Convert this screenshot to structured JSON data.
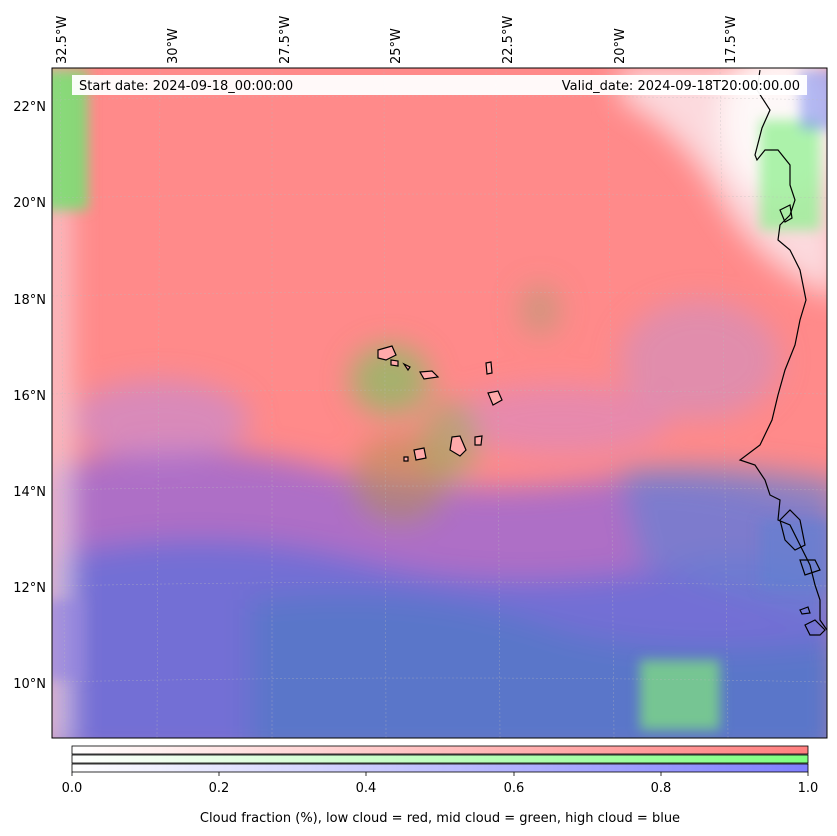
{
  "map": {
    "start_date_text": "Start date: 2024-09-18_00:00:00",
    "valid_date_text": "Valid_date: 2024-09-18T20:00:00.00",
    "lon_ticks": [
      {
        "value": -32.5,
        "label": "32.5°W"
      },
      {
        "value": -30.0,
        "label": "30°W"
      },
      {
        "value": -27.5,
        "label": "27.5°W"
      },
      {
        "value": -25.0,
        "label": "25°W"
      },
      {
        "value": -22.5,
        "label": "22.5°W"
      },
      {
        "value": -20.0,
        "label": "20°W"
      },
      {
        "value": -17.5,
        "label": "17.5°W"
      }
    ],
    "lat_ticks": [
      {
        "value": 22,
        "label": "22°N"
      },
      {
        "value": 20,
        "label": "20°N"
      },
      {
        "value": 18,
        "label": "18°N"
      },
      {
        "value": 16,
        "label": "16°N"
      },
      {
        "value": 14,
        "label": "14°N"
      },
      {
        "value": 12,
        "label": "12°N"
      },
      {
        "value": 10,
        "label": "10°N"
      }
    ],
    "colors": {
      "low_cloud": "#ff8080",
      "mid_cloud": "#80f080",
      "high_cloud": "#6a6ae0",
      "coastline": "#000000"
    }
  },
  "colorbar": {
    "ticks": [
      {
        "value": 0.0,
        "label": "0.0"
      },
      {
        "value": 0.2,
        "label": "0.2"
      },
      {
        "value": 0.4,
        "label": "0.4"
      },
      {
        "value": 0.6,
        "label": "0.6"
      },
      {
        "value": 0.8,
        "label": "0.8"
      },
      {
        "value": 1.0,
        "label": "1.0"
      }
    ],
    "label": "Cloud fraction (%), low cloud = red, mid cloud = green, high cloud = blue"
  }
}
